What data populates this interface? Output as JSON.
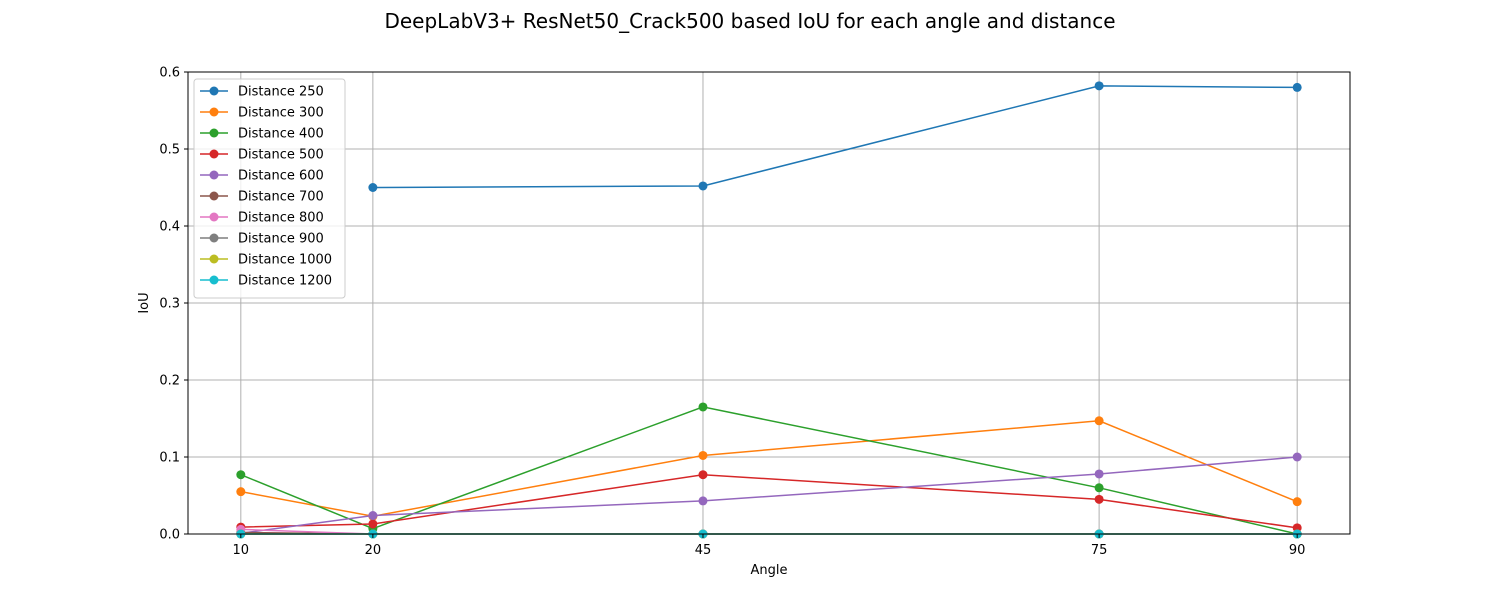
{
  "chart_data": {
    "type": "line",
    "title": "DeepLabV3+ ResNet50_Crack500 based IoU for each angle and distance",
    "xlabel": "Angle",
    "ylabel": "IoU",
    "x": [
      10,
      20,
      45,
      75,
      90
    ],
    "xlim": [
      6,
      94
    ],
    "ylim": [
      0,
      0.6
    ],
    "xticks": [
      10,
      20,
      45,
      75,
      90
    ],
    "yticks": [
      0.0,
      0.1,
      0.2,
      0.3,
      0.4,
      0.5,
      0.6
    ],
    "ytick_labels": [
      "0.0",
      "0.1",
      "0.2",
      "0.3",
      "0.4",
      "0.5",
      "0.6"
    ],
    "grid": true,
    "legend_position": "upper-left",
    "series": [
      {
        "name": "Distance 250",
        "color": "#1f77b4",
        "values": [
          null,
          0.45,
          0.452,
          0.582,
          0.58
        ]
      },
      {
        "name": "Distance 300",
        "color": "#ff7f0e",
        "values": [
          0.055,
          0.023,
          0.102,
          0.147,
          0.042
        ]
      },
      {
        "name": "Distance 400",
        "color": "#2ca02c",
        "values": [
          0.077,
          0.007,
          0.165,
          0.06,
          0.0
        ]
      },
      {
        "name": "Distance 500",
        "color": "#d62728",
        "values": [
          0.009,
          0.013,
          0.077,
          0.045,
          0.008
        ]
      },
      {
        "name": "Distance 600",
        "color": "#9467bd",
        "values": [
          0.001,
          0.024,
          0.043,
          0.078,
          0.1
        ]
      },
      {
        "name": "Distance 700",
        "color": "#8c564b",
        "values": [
          0.002,
          0.0,
          0.0,
          0.0,
          0.0
        ]
      },
      {
        "name": "Distance 800",
        "color": "#e377c2",
        "values": [
          0.006,
          0.0,
          0.0,
          0.0,
          0.0
        ]
      },
      {
        "name": "Distance 900",
        "color": "#7f7f7f",
        "values": [
          0.0,
          0.0,
          0.0,
          0.0,
          0.0
        ]
      },
      {
        "name": "Distance 1000",
        "color": "#bcbd22",
        "values": [
          0.0,
          0.0,
          0.0,
          0.0,
          0.0
        ]
      },
      {
        "name": "Distance 1200",
        "color": "#17becf",
        "values": [
          0.0,
          0.0,
          0.0,
          0.0,
          0.0
        ]
      }
    ]
  }
}
